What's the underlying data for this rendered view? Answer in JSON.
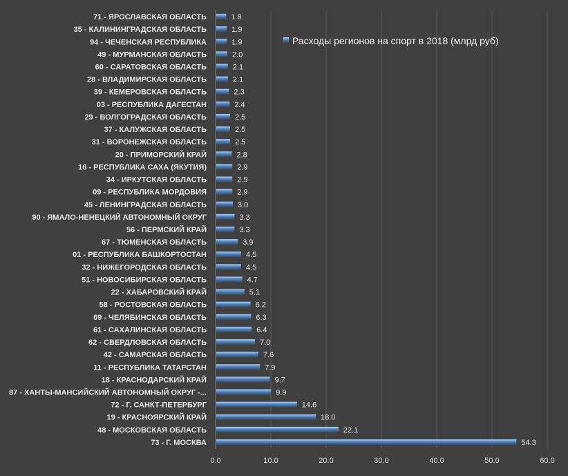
{
  "chart_data": {
    "type": "bar",
    "orientation": "horizontal",
    "legend": {
      "position": "top-right"
    },
    "grid": {
      "vertical": true,
      "horizontal": false
    },
    "xlim": [
      0,
      60
    ],
    "xticks": [
      "0.0",
      "10.0",
      "20.0",
      "30.0",
      "40.0",
      "50.0",
      "60.0"
    ],
    "colors": {
      "background": "#404040",
      "bar": "#4f81bd",
      "bar_light": "#95b3d7",
      "grid": "#595959",
      "text": "#e6e6e6"
    },
    "series": [
      {
        "name": "Расходы регионов на спорт в 2018 (млрд руб)",
        "categories": [
          "71 - ЯРОСЛАВСКАЯ ОБЛАСТЬ",
          "35 - КАЛИНИНГРАДСКАЯ ОБЛАСТЬ",
          "94 - ЧЕЧЕНСКАЯ РЕСПУБЛИКА",
          "49 - МУРМАНСКАЯ ОБЛАСТЬ",
          "60 - САРАТОВСКАЯ ОБЛАСТЬ",
          "28 - ВЛАДИМИРСКАЯ ОБЛАСТЬ",
          "39 - КЕМЕРОВСКАЯ ОБЛАСТЬ",
          "03 - РЕСПУБЛИКА ДАГЕСТАН",
          "29 - ВОЛГОГРАДСКАЯ ОБЛАСТЬ",
          "37 - КАЛУЖСКАЯ ОБЛАСТЬ",
          "31 - ВОРОНЕЖСКАЯ ОБЛАСТЬ",
          "20 - ПРИМОРСКИЙ КРАЙ",
          "16 - РЕСПУБЛИКА САХА (ЯКУТИЯ)",
          "34 - ИРКУТСКАЯ ОБЛАСТЬ",
          "09 - РЕСПУБЛИКА МОРДОВИЯ",
          "45 - ЛЕНИНГРАДСКАЯ ОБЛАСТЬ",
          "90 - ЯМАЛО-НЕНЕЦКИЙ АВТОНОМНЫЙ ОКРУГ",
          "56 - ПЕРМСКИЙ КРАЙ",
          "67 - ТЮМЕНСКАЯ ОБЛАСТЬ",
          "01 - РЕСПУБЛИКА БАШКОРТОСТАН",
          "32 - НИЖЕГОРОДСКАЯ ОБЛАСТЬ",
          "51 - НОВОСИБИРСКАЯ ОБЛАСТЬ",
          "22 - ХАБАРОВСКИЙ КРАЙ",
          "58 - РОСТОВСКАЯ ОБЛАСТЬ",
          "69 - ЧЕЛЯБИНСКАЯ ОБЛАСТЬ",
          "61 - САХАЛИНСКАЯ ОБЛАСТЬ",
          "62 - СВЕРДЛОВСКАЯ ОБЛАСТЬ",
          "42 - САМАРСКАЯ ОБЛАСТЬ",
          "11 - РЕСПУБЛИКА ТАТАРСТАН",
          "18 - КРАСНОДАРСКИЙ КРАЙ",
          "87 - ХАНТЫ-МАНСИЙСКИЙ АВТОНОМНЫЙ ОКРУГ -...",
          "72 - Г. САНКТ-ПЕТЕРБУРГ",
          "19 - КРАСНОЯРСКИЙ КРАЙ",
          "48 - МОСКОВСКАЯ ОБЛАСТЬ",
          "73 - Г. МОСКВА"
        ],
        "values": [
          1.8,
          1.9,
          1.9,
          2.0,
          2.1,
          2.1,
          2.3,
          2.4,
          2.5,
          2.5,
          2.5,
          2.8,
          2.9,
          2.9,
          2.9,
          3.0,
          3.3,
          3.3,
          3.9,
          4.5,
          4.5,
          4.7,
          5.1,
          6.2,
          6.3,
          6.4,
          7.0,
          7.6,
          7.9,
          9.7,
          9.9,
          14.6,
          18.0,
          22.1,
          54.3
        ],
        "labels": [
          "1.8",
          "1.9",
          "1.9",
          "2.0",
          "2.1",
          "2.1",
          "2.3",
          "2.4",
          "2.5",
          "2.5",
          "2.5",
          "2.8",
          "2.9",
          "2.9",
          "2.9",
          "3.0",
          "3.3",
          "3.3",
          "3.9",
          "4.5",
          "4.5",
          "4.7",
          "5.1",
          "6.2",
          "6.3",
          "6.4",
          "7.0",
          "7.6",
          "7.9",
          "9.7",
          "9.9",
          "14.6",
          "18.0",
          "22.1",
          "54.3"
        ]
      }
    ]
  }
}
